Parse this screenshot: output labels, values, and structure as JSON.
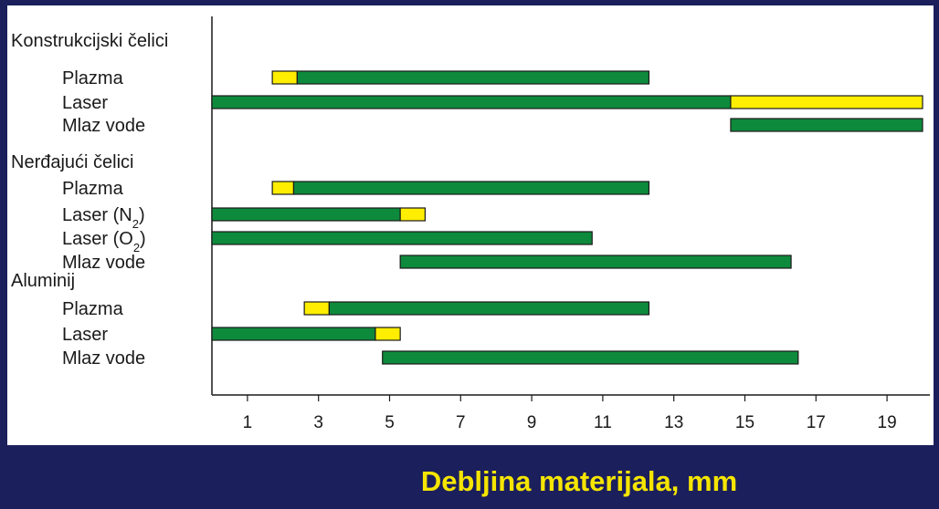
{
  "chart_data": {
    "type": "bar",
    "orientation": "horizontal-range",
    "title": "",
    "xlabel": "Debljina materijala, mm",
    "xlim": [
      0,
      20
    ],
    "xticks": [
      1,
      3,
      5,
      7,
      9,
      11,
      13,
      15,
      17,
      19
    ],
    "colors": {
      "green": "#0e8a3c",
      "yellow": "#ffee00",
      "outline": "#1a1a1a"
    },
    "groups": [
      {
        "name": "Konstrukcijski čelici",
        "rows": [
          {
            "label": "Plazma",
            "sub": "",
            "suffix": "",
            "segments": [
              {
                "from": 1.7,
                "to": 2.4,
                "color": "yellow"
              },
              {
                "from": 2.4,
                "to": 12.3,
                "color": "green"
              }
            ]
          },
          {
            "label": "Laser",
            "sub": "",
            "suffix": "",
            "segments": [
              {
                "from": 0,
                "to": 14.6,
                "color": "green"
              },
              {
                "from": 14.6,
                "to": 20,
                "color": "yellow"
              }
            ]
          },
          {
            "label": "Mlaz vode",
            "sub": "",
            "suffix": "",
            "segments": [
              {
                "from": 14.6,
                "to": 20,
                "color": "green"
              }
            ]
          }
        ]
      },
      {
        "name": "Nerđajući čelici",
        "rows": [
          {
            "label": "Plazma",
            "sub": "",
            "suffix": "",
            "segments": [
              {
                "from": 1.7,
                "to": 2.3,
                "color": "yellow"
              },
              {
                "from": 2.3,
                "to": 12.3,
                "color": "green"
              }
            ]
          },
          {
            "label": "Laser (N",
            "sub": "2",
            "suffix": ")",
            "segments": [
              {
                "from": 0,
                "to": 5.3,
                "color": "green"
              },
              {
                "from": 5.3,
                "to": 6.0,
                "color": "yellow"
              }
            ]
          },
          {
            "label": "Laser (O",
            "sub": "2",
            "suffix": ")",
            "segments": [
              {
                "from": 0,
                "to": 10.7,
                "color": "green"
              }
            ]
          },
          {
            "label": "Mlaz vode",
            "sub": "",
            "suffix": "",
            "segments": [
              {
                "from": 5.3,
                "to": 16.3,
                "color": "green"
              }
            ]
          }
        ]
      },
      {
        "name": "Aluminij",
        "rows": [
          {
            "label": "Plazma",
            "sub": "",
            "suffix": "",
            "segments": [
              {
                "from": 2.6,
                "to": 3.3,
                "color": "yellow"
              },
              {
                "from": 3.3,
                "to": 12.3,
                "color": "green"
              }
            ]
          },
          {
            "label": "Laser",
            "sub": "",
            "suffix": "",
            "segments": [
              {
                "from": 0,
                "to": 4.6,
                "color": "green"
              },
              {
                "from": 4.6,
                "to": 5.3,
                "color": "yellow"
              }
            ]
          },
          {
            "label": "Mlaz vode",
            "sub": "",
            "suffix": "",
            "segments": [
              {
                "from": 4.8,
                "to": 16.5,
                "color": "green"
              }
            ]
          }
        ]
      }
    ]
  }
}
